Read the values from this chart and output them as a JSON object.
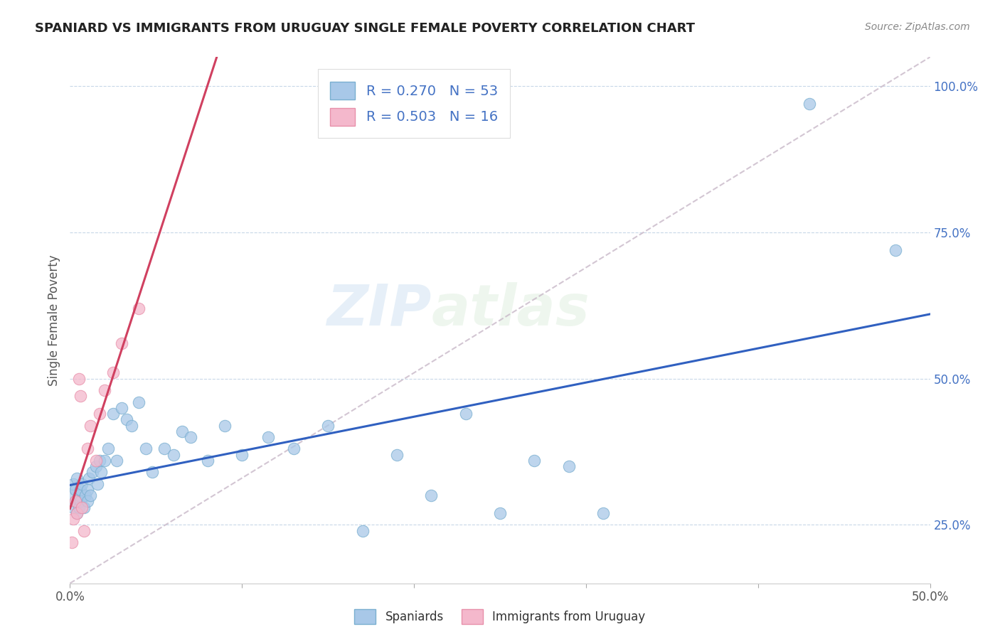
{
  "title": "SPANIARD VS IMMIGRANTS FROM URUGUAY SINGLE FEMALE POVERTY CORRELATION CHART",
  "source": "Source: ZipAtlas.com",
  "ylabel": "Single Female Poverty",
  "xlim": [
    0.0,
    0.5
  ],
  "ylim": [
    0.15,
    1.05
  ],
  "xtick_positions": [
    0.0,
    0.1,
    0.2,
    0.3,
    0.4,
    0.5
  ],
  "xticklabels": [
    "0.0%",
    "",
    "",
    "",
    "",
    "50.0%"
  ],
  "ytick_positions": [
    0.25,
    0.5,
    0.75,
    1.0
  ],
  "yticklabels": [
    "25.0%",
    "50.0%",
    "75.0%",
    "100.0%"
  ],
  "R_spanish": 0.27,
  "N_spanish": 53,
  "R_uruguay": 0.503,
  "N_uruguay": 16,
  "spaniard_color": "#a8c8e8",
  "spaniard_edge": "#7aafd0",
  "uruguay_color": "#f4b8cc",
  "uruguay_edge": "#e890aa",
  "trend_spanish_color": "#3060c0",
  "trend_uruguay_color": "#d04060",
  "diagonal_color": "#c8b8c8",
  "legend_label_spanish": "Spaniards",
  "legend_label_uruguay": "Immigrants from Uruguay",
  "watermark": "ZIPatlas",
  "spaniard_x": [
    0.001,
    0.002,
    0.002,
    0.003,
    0.003,
    0.004,
    0.004,
    0.005,
    0.005,
    0.006,
    0.006,
    0.007,
    0.008,
    0.009,
    0.01,
    0.01,
    0.011,
    0.012,
    0.013,
    0.015,
    0.016,
    0.017,
    0.018,
    0.02,
    0.022,
    0.025,
    0.027,
    0.03,
    0.033,
    0.036,
    0.04,
    0.044,
    0.048,
    0.055,
    0.06,
    0.065,
    0.07,
    0.08,
    0.09,
    0.1,
    0.115,
    0.13,
    0.15,
    0.17,
    0.19,
    0.21,
    0.23,
    0.25,
    0.27,
    0.29,
    0.31,
    0.43,
    0.48
  ],
  "spaniard_y": [
    0.3,
    0.28,
    0.32,
    0.29,
    0.31,
    0.27,
    0.33,
    0.3,
    0.28,
    0.29,
    0.31,
    0.32,
    0.28,
    0.3,
    0.31,
    0.29,
    0.33,
    0.3,
    0.34,
    0.35,
    0.32,
    0.36,
    0.34,
    0.36,
    0.38,
    0.44,
    0.36,
    0.45,
    0.43,
    0.42,
    0.46,
    0.38,
    0.34,
    0.38,
    0.37,
    0.41,
    0.4,
    0.36,
    0.42,
    0.37,
    0.4,
    0.38,
    0.42,
    0.24,
    0.37,
    0.3,
    0.44,
    0.27,
    0.36,
    0.35,
    0.27,
    0.97,
    0.72
  ],
  "uruguay_x": [
    0.001,
    0.002,
    0.003,
    0.004,
    0.005,
    0.006,
    0.007,
    0.008,
    0.01,
    0.012,
    0.015,
    0.017,
    0.02,
    0.025,
    0.03,
    0.04
  ],
  "uruguay_y": [
    0.22,
    0.26,
    0.29,
    0.27,
    0.5,
    0.47,
    0.28,
    0.24,
    0.38,
    0.42,
    0.36,
    0.44,
    0.48,
    0.51,
    0.56,
    0.62
  ],
  "trend_sp_x0": 0.0,
  "trend_sp_y0": 0.308,
  "trend_sp_x1": 0.5,
  "trend_sp_y1": 0.497,
  "trend_ur_x0": 0.0,
  "trend_ur_y0": 0.3,
  "trend_ur_x1": 0.05,
  "trend_ur_y1": 0.56
}
